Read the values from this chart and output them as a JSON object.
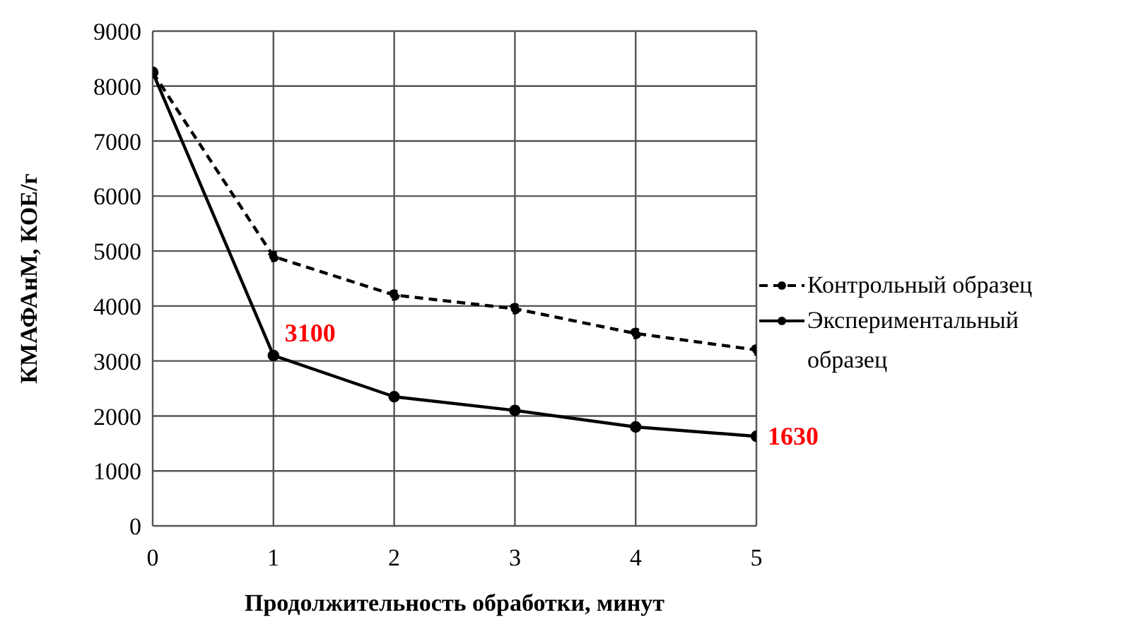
{
  "chart_data": {
    "type": "line",
    "xlabel": "Продолжительность обработки, минут",
    "ylabel": "КМАФАнМ,  КОЕ/г",
    "x": [
      0,
      1,
      2,
      3,
      4,
      5
    ],
    "series": [
      {
        "name": "Контрольный образец",
        "color": "#000000",
        "line_style": "dashed",
        "values": [
          8250,
          4900,
          4200,
          3950,
          3500,
          3200
        ]
      },
      {
        "name": "Экспериментальный образец",
        "color": "#000000",
        "line_style": "solid",
        "values": [
          8250,
          3100,
          2350,
          2100,
          1800,
          1630
        ],
        "value_labels": [
          null,
          "3100",
          null,
          null,
          null,
          "1630"
        ]
      }
    ],
    "xlim": [
      0,
      5
    ],
    "xticks": [
      0,
      1,
      2,
      3,
      4,
      5
    ],
    "ylim": [
      0,
      9000
    ],
    "yticks": [
      0,
      1000,
      2000,
      3000,
      4000,
      5000,
      6000,
      7000,
      8000,
      9000
    ],
    "grid": true,
    "legend": "right",
    "marker": "circle"
  }
}
